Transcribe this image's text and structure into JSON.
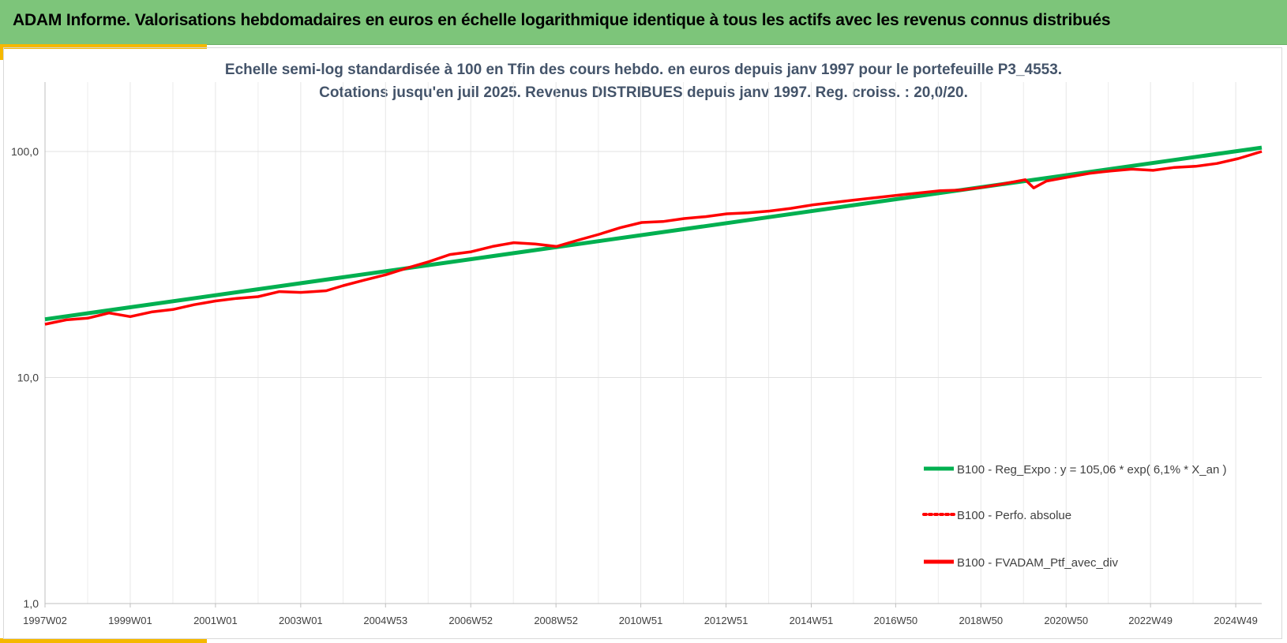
{
  "header": {
    "title": "ADAM Informe. Valorisations hebdomadaires en euros en échelle logarithmique identique à tous les actifs avec les revenus connus distribués"
  },
  "colors": {
    "header_bg": "#7dc57a",
    "accent": "#f5b800",
    "regression": "#00b050",
    "portfolio": "#ff0000",
    "title_text": "#44546a"
  },
  "chart_data": {
    "type": "line",
    "title_line1": "Echelle semi-log standardisée à 100 en Tfin des cours hebdo. en euros depuis janv 1997 pour le portefeuille P3_4553.",
    "title_line2": "Cotations jusqu'en juil 2025. Revenus DISTRIBUES depuis janv 1997. Reg. croiss. : 20,0/20.",
    "y_scale": "log",
    "ylim": [
      1,
      100
    ],
    "y_ticks": [
      100,
      10,
      1
    ],
    "y_tick_labels": [
      "100,0",
      "10,0",
      "1,0"
    ],
    "xlim": [
      1997.0,
      2025.55
    ],
    "x_ticks": [
      1997.0,
      1999.0,
      2001.0,
      2003.0,
      2004.99,
      2006.99,
      2008.99,
      2010.98,
      2012.98,
      2014.98,
      2016.96,
      2018.96,
      2020.96,
      2022.94,
      2024.94
    ],
    "x_tick_labels": [
      "1997W02",
      "1999W01",
      "2001W01",
      "2003W01",
      "2004W53",
      "2006W52",
      "2008W52",
      "2010W51",
      "2012W51",
      "2014W51",
      "2016W50",
      "2018W50",
      "2020W50",
      "2022W49",
      "2024W49"
    ],
    "grid": "vertical and horizontal",
    "legend_position": "bottom-right",
    "series": [
      {
        "name": "B100 - Reg_Expo : y = 105,06 * exp( 6,1% *  X_an )",
        "style": "solid",
        "color": "#00b050",
        "x": [
          1997.0,
          2025.55
        ],
        "y": [
          18.1,
          104.0
        ]
      },
      {
        "name": "B100 - Perfo. absolue",
        "style": "dotted",
        "color": "#ff0000",
        "x": [
          1997.0,
          1997.5,
          1998.0,
          1998.5,
          1999.0,
          1999.5,
          2000.0,
          2000.5,
          2001.0,
          2001.5,
          2002.0,
          2002.5,
          2003.0,
          2003.3,
          2003.6,
          2004.0,
          2004.5,
          2005.0,
          2005.5,
          2006.0,
          2006.5,
          2007.0,
          2007.5,
          2008.0,
          2008.5,
          2009.0,
          2009.5,
          2010.0,
          2010.5,
          2011.0,
          2011.5,
          2012.0,
          2012.5,
          2013.0,
          2013.5,
          2014.0,
          2014.5,
          2015.0,
          2015.5,
          2016.0,
          2016.5,
          2017.0,
          2017.5,
          2018.0,
          2018.5,
          2019.0,
          2019.5,
          2020.0,
          2020.2,
          2020.5,
          2021.0,
          2021.5,
          2022.0,
          2022.5,
          2023.0,
          2023.5,
          2024.0,
          2024.5,
          2025.0,
          2025.55
        ],
        "y": [
          17.2,
          18.0,
          18.3,
          19.3,
          18.6,
          19.5,
          20.0,
          21.0,
          21.8,
          22.4,
          22.8,
          24.0,
          23.8,
          24.0,
          24.2,
          25.5,
          27.0,
          28.5,
          30.5,
          32.5,
          35.0,
          36.0,
          38.0,
          39.5,
          39.0,
          38.0,
          40.5,
          43.0,
          46.0,
          48.5,
          49.0,
          50.5,
          51.5,
          53.0,
          53.5,
          54.5,
          56.0,
          58.0,
          59.5,
          61.0,
          62.5,
          64.0,
          65.5,
          67.0,
          67.5,
          69.5,
          72.0,
          75.0,
          69.0,
          74.0,
          77.0,
          80.0,
          82.0,
          83.5,
          82.5,
          85.0,
          86.0,
          88.5,
          93.0,
          100.0
        ]
      },
      {
        "name": "B100 - FVADAM_Ptf_avec_div",
        "style": "solid",
        "color": "#ff0000",
        "x": [
          1997.0,
          1997.5,
          1998.0,
          1998.5,
          1999.0,
          1999.5,
          2000.0,
          2000.5,
          2001.0,
          2001.5,
          2002.0,
          2002.5,
          2003.0,
          2003.3,
          2003.6,
          2004.0,
          2004.5,
          2005.0,
          2005.5,
          2006.0,
          2006.5,
          2007.0,
          2007.5,
          2008.0,
          2008.5,
          2009.0,
          2009.5,
          2010.0,
          2010.5,
          2011.0,
          2011.5,
          2012.0,
          2012.5,
          2013.0,
          2013.5,
          2014.0,
          2014.5,
          2015.0,
          2015.5,
          2016.0,
          2016.5,
          2017.0,
          2017.5,
          2018.0,
          2018.5,
          2019.0,
          2019.5,
          2020.0,
          2020.2,
          2020.5,
          2021.0,
          2021.5,
          2022.0,
          2022.5,
          2023.0,
          2023.5,
          2024.0,
          2024.5,
          2025.0,
          2025.55
        ],
        "y": [
          17.2,
          18.0,
          18.3,
          19.3,
          18.6,
          19.5,
          20.0,
          21.0,
          21.8,
          22.4,
          22.8,
          24.0,
          23.8,
          24.0,
          24.2,
          25.5,
          27.0,
          28.5,
          30.5,
          32.5,
          35.0,
          36.0,
          38.0,
          39.5,
          39.0,
          38.0,
          40.5,
          43.0,
          46.0,
          48.5,
          49.0,
          50.5,
          51.5,
          53.0,
          53.5,
          54.5,
          56.0,
          58.0,
          59.5,
          61.0,
          62.5,
          64.0,
          65.5,
          67.0,
          67.5,
          69.5,
          72.0,
          75.0,
          69.0,
          74.0,
          77.0,
          80.0,
          82.0,
          83.5,
          82.5,
          85.0,
          86.0,
          88.5,
          93.0,
          100.0
        ]
      }
    ]
  }
}
